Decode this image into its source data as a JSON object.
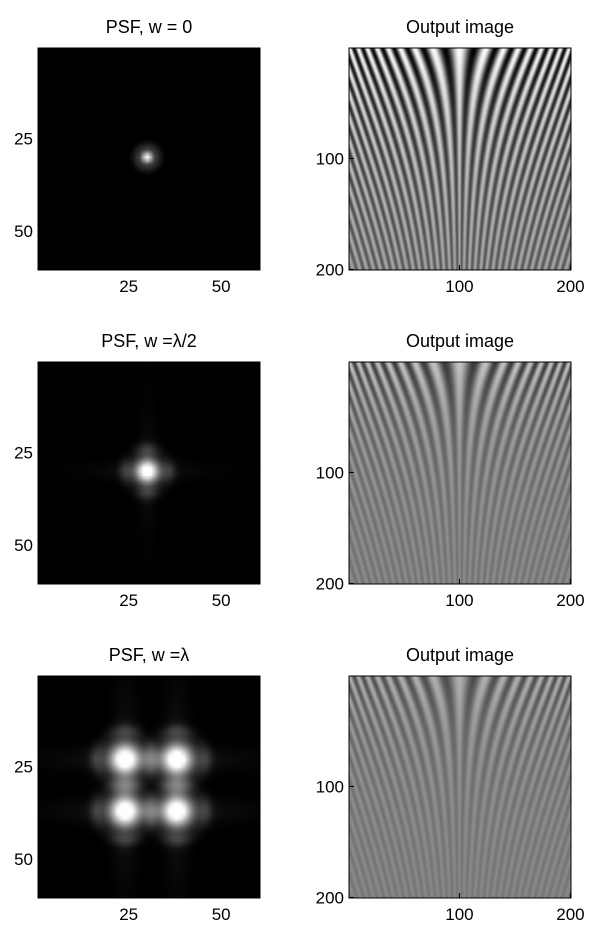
{
  "chart_data": [
    {
      "type": "heatmap",
      "title": "PSF, w = 0",
      "colormap": "gray",
      "xlim": [
        0.5,
        60.5
      ],
      "ylim": [
        60.5,
        0.5
      ],
      "xticks": [
        25,
        50
      ],
      "yticks": [
        25,
        50
      ],
      "peaks": [
        {
          "x": 30,
          "y": 30,
          "intensity": 1.0
        }
      ],
      "spread": "narrow"
    },
    {
      "type": "heatmap",
      "title": "Output image",
      "colormap": "gray",
      "xlim": [
        0.5,
        200.5
      ],
      "ylim": [
        200.5,
        0.5
      ],
      "xticks": [
        100,
        200
      ],
      "yticks": [
        100,
        200
      ],
      "pattern": "fringes",
      "contrast": 1.0
    },
    {
      "type": "heatmap",
      "title": "PSF, w =λ/2",
      "colormap": "gray",
      "xlim": [
        0.5,
        60.5
      ],
      "ylim": [
        60.5,
        0.5
      ],
      "xticks": [
        25,
        50
      ],
      "yticks": [
        25,
        50
      ],
      "peaks": [
        {
          "x": 30,
          "y": 30,
          "intensity": 1.0
        }
      ],
      "spread": "medium"
    },
    {
      "type": "heatmap",
      "title": "Output image",
      "colormap": "gray",
      "xlim": [
        0.5,
        200.5
      ],
      "ylim": [
        200.5,
        0.5
      ],
      "xticks": [
        100,
        200
      ],
      "yticks": [
        100,
        200
      ],
      "pattern": "fringes",
      "contrast": 0.55
    },
    {
      "type": "heatmap",
      "title": "PSF, w =λ",
      "colormap": "gray",
      "xlim": [
        0.5,
        60.5
      ],
      "ylim": [
        60.5,
        0.5
      ],
      "xticks": [
        25,
        50
      ],
      "yticks": [
        25,
        50
      ],
      "peaks": [
        {
          "x": 24,
          "y": 23,
          "intensity": 1.0
        },
        {
          "x": 38,
          "y": 23,
          "intensity": 1.0
        },
        {
          "x": 24,
          "y": 37,
          "intensity": 1.0
        },
        {
          "x": 38,
          "y": 37,
          "intensity": 1.0
        }
      ],
      "spread": "wide"
    },
    {
      "type": "heatmap",
      "title": "Output image",
      "colormap": "gray",
      "xlim": [
        0.5,
        200.5
      ],
      "ylim": [
        200.5,
        0.5
      ],
      "xticks": [
        100,
        200
      ],
      "yticks": [
        100,
        200
      ],
      "pattern": "fringes",
      "contrast": 0.4
    }
  ]
}
